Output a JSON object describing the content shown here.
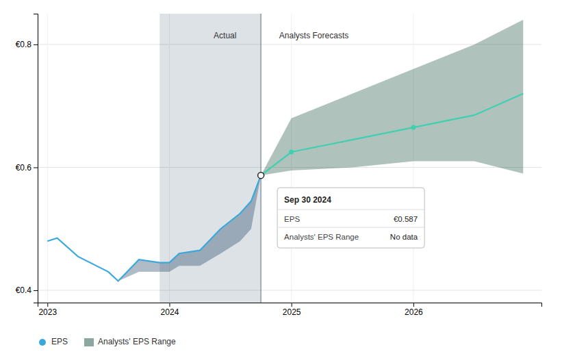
{
  "chart_data": {
    "type": "line",
    "xlim": [
      2022.92,
      2027.05
    ],
    "xticks": [
      2023,
      2024,
      2025,
      2026
    ],
    "ylim": [
      0.38,
      0.85
    ],
    "yticks": [
      {
        "value": 0.4,
        "label": "€0.4"
      },
      {
        "value": 0.6,
        "label": "€0.6"
      },
      {
        "value": 0.8,
        "label": "€0.8"
      }
    ],
    "grid": true,
    "legend": "bottom",
    "series": [
      {
        "name": "EPS",
        "type": "line",
        "color": "#3ba8dc",
        "x": [
          2023.0,
          2023.08,
          2023.25,
          2023.5,
          2023.58,
          2023.75,
          2023.92,
          2024.0,
          2024.08,
          2024.25,
          2024.42,
          2024.58,
          2024.67,
          2024.75
        ],
        "values": [
          0.48,
          0.485,
          0.455,
          0.43,
          0.415,
          0.45,
          0.445,
          0.445,
          0.46,
          0.465,
          0.5,
          0.525,
          0.545,
          0.587
        ]
      },
      {
        "type": "line",
        "color": "#40d0b0",
        "x": [
          2024.75,
          2025.0,
          2025.5,
          2026.0,
          2026.5,
          2026.9
        ],
        "values": [
          0.587,
          0.625,
          0.645,
          0.665,
          0.685,
          0.72
        ]
      },
      {
        "type": "scatter",
        "color": "#40d0b0",
        "marker": "circle",
        "x": [
          2025.0,
          2026.0
        ],
        "values": [
          0.625,
          0.665
        ]
      },
      {
        "type": "area",
        "color": "#1a4060",
        "x": [
          2023.0,
          2023.08,
          2023.25,
          2023.5,
          2023.58,
          2023.75,
          2023.92,
          2024.0,
          2024.08,
          2024.25,
          2024.42,
          2024.58,
          2024.67,
          2024.75
        ],
        "upper": [
          0.48,
          0.485,
          0.455,
          0.43,
          0.415,
          0.45,
          0.445,
          0.445,
          0.46,
          0.465,
          0.5,
          0.525,
          0.545,
          0.587
        ],
        "lower": [
          0.48,
          0.485,
          0.455,
          0.43,
          0.415,
          0.43,
          0.43,
          0.43,
          0.44,
          0.44,
          0.46,
          0.48,
          0.5,
          0.587
        ]
      },
      {
        "name": "Analysts' EPS Range",
        "type": "area",
        "color": "#1a5040",
        "x": [
          2024.75,
          2025.0,
          2025.5,
          2026.0,
          2026.5,
          2026.9
        ],
        "upper": [
          0.587,
          0.68,
          0.72,
          0.76,
          0.8,
          0.84
        ],
        "lower": [
          0.587,
          0.595,
          0.6,
          0.61,
          0.61,
          0.59
        ]
      }
    ],
    "highlight": {
      "x": [
        2023.92,
        2024.75
      ],
      "color": "#1a3a5c"
    },
    "divider_x": 2024.75,
    "annotations": [
      {
        "text": "Actual",
        "x": 2024.55,
        "y": 0.81945
      },
      {
        "text": "Analysts Forecasts",
        "x": 2024.9,
        "y": 0.81945
      }
    ],
    "tooltip": {
      "title": "Sep 30 2024",
      "x": 2024.75,
      "y": 0.587,
      "rows": [
        {
          "label": "EPS",
          "value": "€0.587"
        },
        {
          "label": "Analysts' EPS Range",
          "value": "No data"
        }
      ]
    }
  }
}
